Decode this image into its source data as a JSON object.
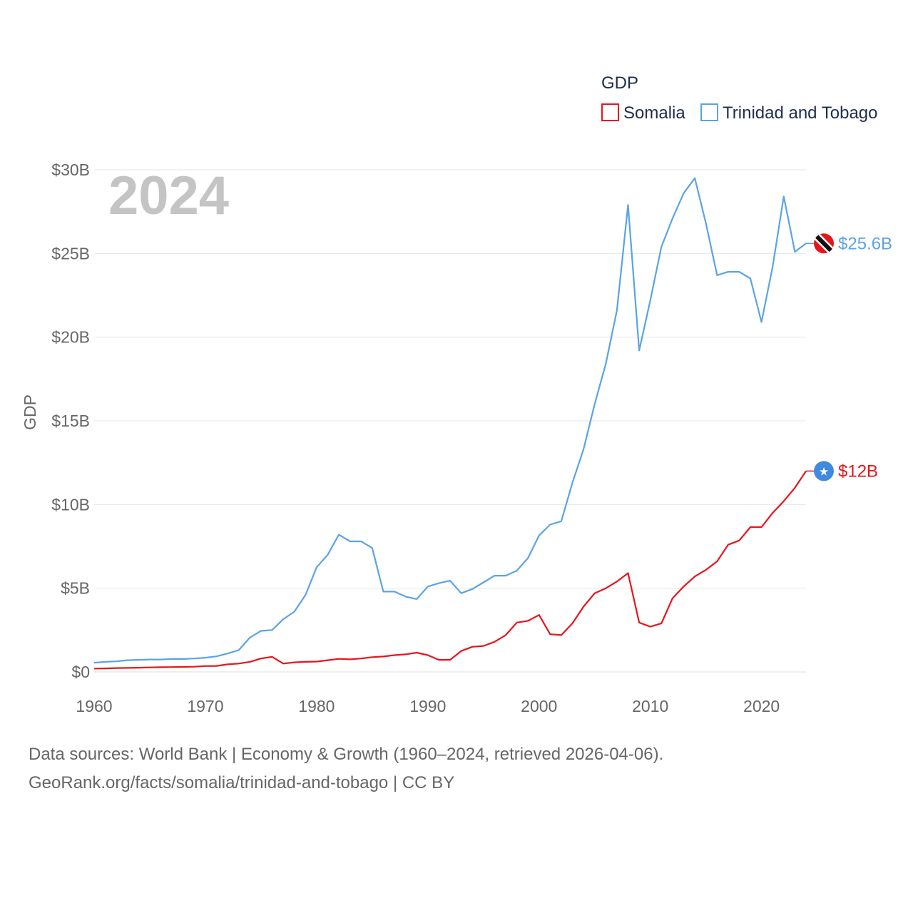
{
  "chart_data": {
    "type": "line",
    "title": "GDP",
    "ylabel": "GDP",
    "xlabel": "",
    "year_label": "2024",
    "xlim": [
      1960,
      2024
    ],
    "ylim": [
      0,
      30
    ],
    "x_ticks": [
      1960,
      1970,
      1980,
      1990,
      2000,
      2010,
      2020
    ],
    "y_ticks": [
      0,
      5,
      10,
      15,
      20,
      25,
      30
    ],
    "y_tick_labels": [
      "$0",
      "$5B",
      "$10B",
      "$15B",
      "$20B",
      "$25B",
      "$30B"
    ],
    "legend_position": "top-right",
    "grid": true,
    "series": [
      {
        "name": "Somalia",
        "color": "#e8141c",
        "end_label": "$12B",
        "flag_icon": "somalia-flag-icon",
        "x": [
          1960,
          1961,
          1962,
          1963,
          1964,
          1965,
          1966,
          1967,
          1968,
          1969,
          1970,
          1971,
          1972,
          1973,
          1974,
          1975,
          1976,
          1977,
          1978,
          1979,
          1980,
          1981,
          1982,
          1983,
          1984,
          1985,
          1986,
          1987,
          1988,
          1989,
          1990,
          1991,
          1992,
          1993,
          1994,
          1995,
          1996,
          1997,
          1998,
          1999,
          2000,
          2001,
          2002,
          2003,
          2004,
          2005,
          2006,
          2007,
          2008,
          2009,
          2010,
          2011,
          2012,
          2013,
          2014,
          2015,
          2016,
          2017,
          2018,
          2019,
          2020,
          2021,
          2022,
          2023,
          2024
        ],
        "values": [
          0.2,
          0.21,
          0.23,
          0.24,
          0.25,
          0.27,
          0.28,
          0.29,
          0.3,
          0.31,
          0.35,
          0.36,
          0.45,
          0.5,
          0.6,
          0.8,
          0.9,
          0.5,
          0.57,
          0.6,
          0.62,
          0.7,
          0.78,
          0.75,
          0.8,
          0.88,
          0.92,
          1.0,
          1.05,
          1.15,
          1.0,
          0.72,
          0.72,
          1.25,
          1.5,
          1.55,
          1.8,
          2.2,
          2.95,
          3.05,
          3.4,
          2.25,
          2.2,
          2.9,
          3.9,
          4.7,
          5.0,
          5.4,
          5.9,
          2.95,
          2.7,
          2.9,
          4.4,
          5.1,
          5.7,
          6.1,
          6.6,
          7.6,
          7.85,
          8.65,
          8.65,
          9.5,
          10.2,
          11.0,
          12.0
        ]
      },
      {
        "name": "Trinidad and Tobago",
        "color": "#5ba3e6",
        "end_label": "$25.6B",
        "flag_icon": "trinidad-and-tobago-flag-icon",
        "x": [
          1960,
          1961,
          1962,
          1963,
          1964,
          1965,
          1966,
          1967,
          1968,
          1969,
          1970,
          1971,
          1972,
          1973,
          1974,
          1975,
          1976,
          1977,
          1978,
          1979,
          1980,
          1981,
          1982,
          1983,
          1984,
          1985,
          1986,
          1987,
          1988,
          1989,
          1990,
          1991,
          1992,
          1993,
          1994,
          1995,
          1996,
          1997,
          1998,
          1999,
          2000,
          2001,
          2002,
          2003,
          2004,
          2005,
          2006,
          2007,
          2008,
          2009,
          2010,
          2011,
          2012,
          2013,
          2014,
          2015,
          2016,
          2017,
          2018,
          2019,
          2020,
          2021,
          2022,
          2023,
          2024
        ],
        "values": [
          0.55,
          0.6,
          0.63,
          0.7,
          0.72,
          0.74,
          0.74,
          0.77,
          0.77,
          0.8,
          0.85,
          0.93,
          1.1,
          1.3,
          2.05,
          2.45,
          2.5,
          3.15,
          3.6,
          4.6,
          6.25,
          7.0,
          8.2,
          7.8,
          7.8,
          7.4,
          4.8,
          4.8,
          4.5,
          4.35,
          5.1,
          5.3,
          5.45,
          4.7,
          4.95,
          5.35,
          5.75,
          5.75,
          6.05,
          6.8,
          8.15,
          8.8,
          9.0,
          11.3,
          13.3,
          16.0,
          18.4,
          21.6,
          27.9,
          19.2,
          22.2,
          25.4,
          27.1,
          28.6,
          29.5,
          26.8,
          23.7,
          23.9,
          23.9,
          23.5,
          20.9,
          24.2,
          28.4,
          25.1,
          25.6
        ]
      }
    ]
  },
  "footer": {
    "line1": "Data sources: World Bank | Economy & Growth (1960–2024, retrieved 2026-04-06).",
    "line2": "GeoRank.org/facts/somalia/trinidad-and-tobago | CC BY"
  }
}
